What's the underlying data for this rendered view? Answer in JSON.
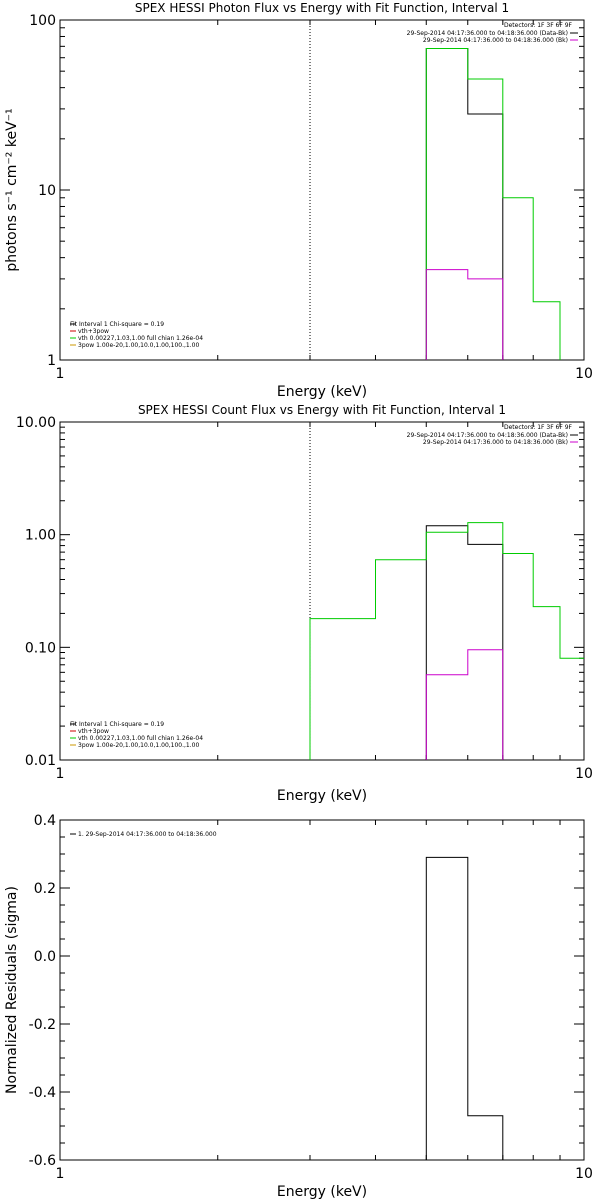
{
  "chart_data": [
    {
      "type": "line",
      "title": "SPEX HESSI Photon Flux vs Energy with Fit Function, Interval 1",
      "xlabel": "Energy (keV)",
      "ylabel": "photons s⁻¹ cm⁻² keV⁻¹",
      "xscale": "log",
      "yscale": "log",
      "xlim": [
        1,
        10
      ],
      "ylim": [
        1,
        100
      ],
      "xticks": [
        "1",
        "10"
      ],
      "yticks": [
        "1",
        "10",
        "100"
      ],
      "detectors_label": "Detectors: 1F 3F 6F 9F",
      "legend_right": [
        {
          "text": "29-Sep-2014 04:17:36.000 to 04:18:36.000 (Data-Bk)",
          "color": "#000000"
        },
        {
          "text": "29-Sep-2014 04:17:36.000 to 04:18:36.000 (Bk)",
          "color": "#cc00cc"
        }
      ],
      "legend_left": [
        {
          "text": "Fit Interval  1    Chi-square = 0.19",
          "color": "#000000"
        },
        {
          "text": "vth+3pow",
          "color": "#cc0000"
        },
        {
          "text": "vth 0.00227,1.03,1.00  full chian 1.26e-04",
          "color": "#00cc00"
        },
        {
          "text": "3pow 1.00e-20,1.00,10.0,1.00,100.,1.00",
          "color": "#cc9900"
        }
      ],
      "vline_x": 3,
      "series": [
        {
          "color": "#000000",
          "points": [
            [
              5,
              1
            ],
            [
              5,
              68
            ],
            [
              6,
              68
            ],
            [
              6,
              28
            ],
            [
              7,
              28
            ],
            [
              7,
              1
            ]
          ]
        },
        {
          "color": "#00cc00",
          "points": [
            [
              5,
              1
            ],
            [
              5,
              68
            ],
            [
              6,
              68
            ],
            [
              6,
              45
            ],
            [
              7,
              45
            ],
            [
              7,
              9
            ],
            [
              8,
              9
            ],
            [
              8,
              2.2
            ],
            [
              9,
              2.2
            ],
            [
              9,
              1
            ]
          ]
        },
        {
          "color": "#cc00cc",
          "points": [
            [
              5,
              1
            ],
            [
              5,
              3.4
            ],
            [
              6,
              3.4
            ],
            [
              6,
              3.0
            ],
            [
              7,
              3.0
            ],
            [
              7,
              1
            ]
          ]
        }
      ]
    },
    {
      "type": "line",
      "title": "SPEX HESSI Count Flux vs Energy with Fit Function, Interval 1",
      "xlabel": "Energy (keV)",
      "ylabel": "",
      "xscale": "log",
      "yscale": "log",
      "xlim": [
        1,
        10
      ],
      "ylim": [
        0.01,
        10
      ],
      "xticks": [
        "1",
        "10"
      ],
      "yticks": [
        "0.01",
        "0.10",
        "1.00",
        "10.00"
      ],
      "detectors_label": "Detectors: 1F 3F 6F 9F",
      "legend_right": [
        {
          "text": "29-Sep-2014 04:17:36.000 to 04:18:36.000 (Data-Bk)",
          "color": "#000000"
        },
        {
          "text": "29-Sep-2014 04:17:36.000 to 04:18:36.000 (Bk)",
          "color": "#cc00cc"
        }
      ],
      "legend_left": [
        {
          "text": "Fit Interval  1    Chi-square = 0.19",
          "color": "#000000"
        },
        {
          "text": "vth+3pow",
          "color": "#cc0000"
        },
        {
          "text": "vth 0.00227,1.03,1.00  full chian 1.26e-04",
          "color": "#00cc00"
        },
        {
          "text": "3pow 1.00e-20,1.00,10.0,1.00,100.,1.00",
          "color": "#cc9900"
        }
      ],
      "vline_x": 3,
      "series": [
        {
          "color": "#000000",
          "points": [
            [
              5,
              0.01
            ],
            [
              5,
              1.2
            ],
            [
              6,
              1.2
            ],
            [
              6,
              0.82
            ],
            [
              7,
              0.82
            ],
            [
              7,
              0.01
            ]
          ]
        },
        {
          "color": "#00cc00",
          "points": [
            [
              3,
              0.01
            ],
            [
              3,
              0.18
            ],
            [
              4,
              0.18
            ],
            [
              4,
              0.6
            ],
            [
              5,
              0.6
            ],
            [
              5,
              1.05
            ],
            [
              6,
              1.05
            ],
            [
              6,
              1.28
            ],
            [
              7,
              1.28
            ],
            [
              7,
              0.68
            ],
            [
              8,
              0.68
            ],
            [
              8,
              0.23
            ],
            [
              9,
              0.23
            ],
            [
              9,
              0.08
            ],
            [
              10,
              0.08
            ]
          ]
        },
        {
          "color": "#cc00cc",
          "points": [
            [
              5,
              0.01
            ],
            [
              5,
              0.057
            ],
            [
              6,
              0.057
            ],
            [
              6,
              0.095
            ],
            [
              7,
              0.095
            ],
            [
              7,
              0.01
            ]
          ]
        }
      ]
    },
    {
      "type": "line",
      "title": "",
      "xlabel": "Energy (keV)",
      "ylabel": "Normalized Residuals (sigma)",
      "xscale": "log",
      "yscale": "linear",
      "xlim": [
        1,
        10
      ],
      "ylim": [
        -0.6,
        0.4
      ],
      "xticks": [
        "1",
        "10"
      ],
      "yticks": [
        "-0.6",
        "-0.4",
        "-0.2",
        "0.0",
        "0.2",
        "0.4"
      ],
      "legend_left": [
        {
          "text": "1. 29-Sep-2014 04:17:36.000 to 04:18:36.000",
          "color": "#000000"
        }
      ],
      "series": [
        {
          "color": "#000000",
          "points": [
            [
              5,
              -0.6
            ],
            [
              5,
              0.29
            ],
            [
              6,
              0.29
            ],
            [
              6,
              -0.47
            ],
            [
              7,
              -0.47
            ],
            [
              7,
              -0.6
            ]
          ]
        }
      ]
    }
  ]
}
